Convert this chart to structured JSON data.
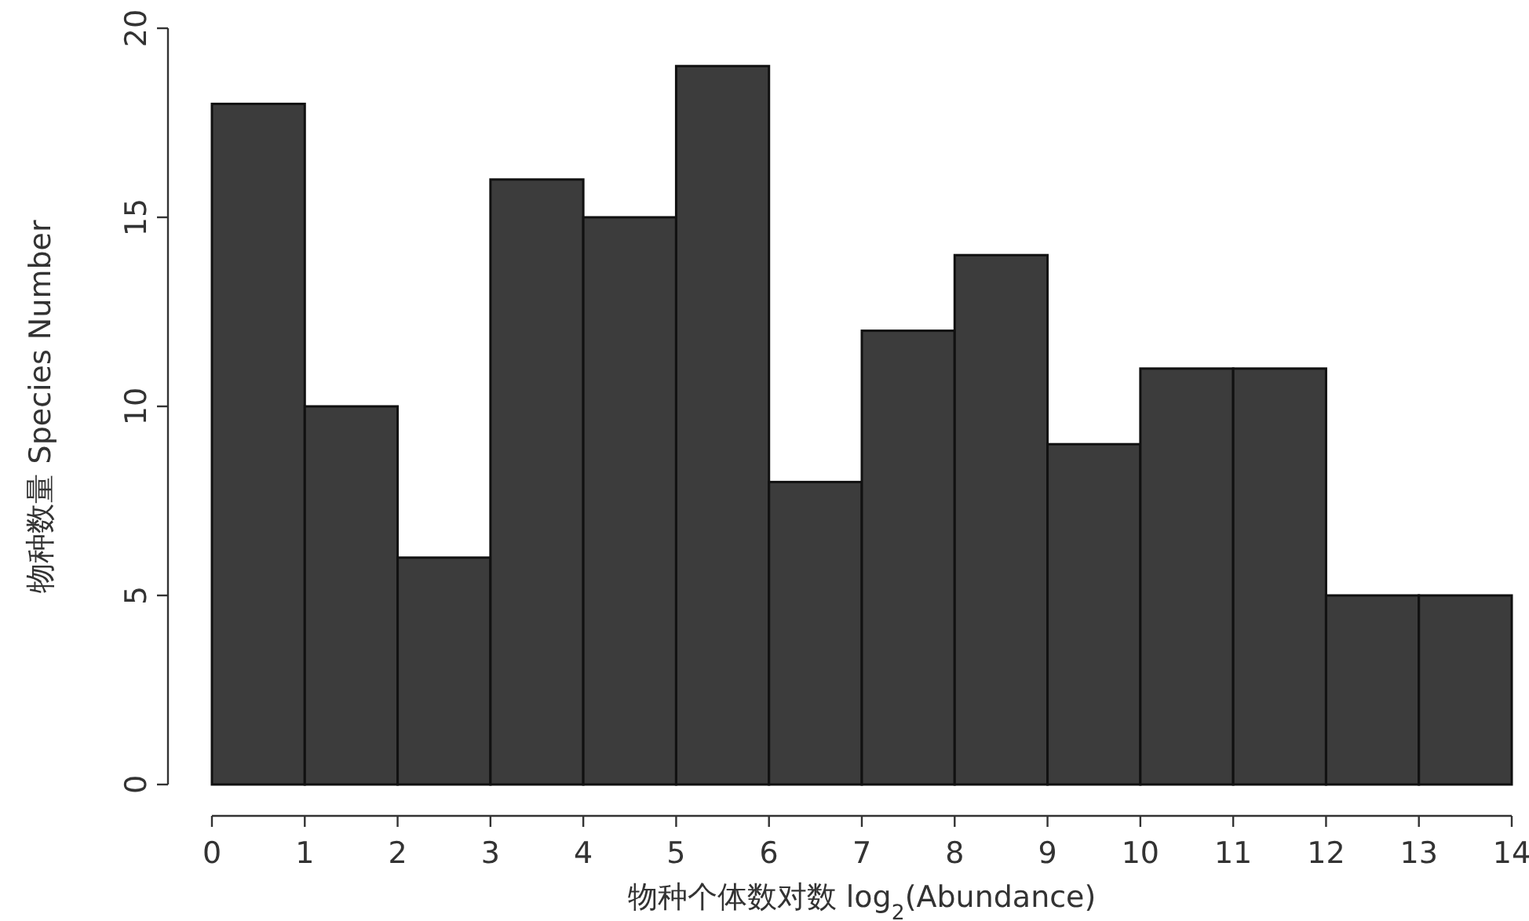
{
  "chart_data": {
    "type": "histogram",
    "xlabel": "物种个体数对数 log$_{2}$(Abundance)",
    "ylabel": "物种数量 Species Number",
    "bins": [
      0,
      1,
      2,
      3,
      4,
      5,
      6,
      7,
      8,
      9,
      10,
      11,
      12,
      13,
      14
    ],
    "values": [
      18,
      10,
      6,
      16,
      15,
      19,
      8,
      12,
      14,
      9,
      11,
      11,
      5,
      5
    ],
    "color": "#3c3c3c",
    "xlim": [
      0,
      14
    ],
    "ylim": [
      0,
      20
    ],
    "xticks": [
      0,
      1,
      2,
      3,
      4,
      5,
      6,
      7,
      8,
      9,
      10,
      11,
      12,
      13,
      14
    ],
    "yticks": [
      0,
      5,
      10,
      15,
      20
    ],
    "grid": false
  }
}
